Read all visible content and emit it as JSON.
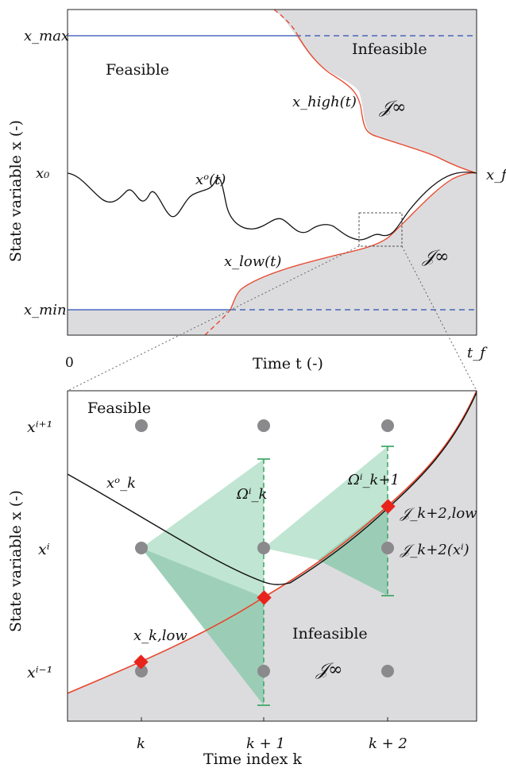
{
  "top_panel": {
    "region_feasible": "Feasible",
    "region_infeasible": "Infeasible",
    "cost_infinity_upper": "𝒥∞",
    "cost_infinity_lower": "𝒥∞",
    "curve_high": "x_high(t)",
    "curve_low": "x_low(t)",
    "curve_optimal": "xᵒ(t)",
    "x_axis_label": "Time t (-)",
    "y_axis_label": "State variable x (-)",
    "y_tick_max": "x_max",
    "y_tick_x0": "x₀",
    "y_tick_min": "x_min",
    "x_tick_start": "0",
    "x_tick_end": "t_f",
    "final_state_label": "x_f"
  },
  "bottom_panel": {
    "region_feasible": "Feasible",
    "region_infeasible": "Infeasible",
    "cost_infinity": "𝒥∞",
    "curve_optimal": "xᵒ_k",
    "omega_k": "Ωⁱ_k",
    "omega_k1": "Ωⁱ_k+1",
    "x_k_low": "x_k,low",
    "j_k2_low": "𝒥_k+2,low",
    "j_k2_xi": "𝒥_k+2(xⁱ)",
    "x_axis_label": "Time index k",
    "y_axis_label": "State variable x (-)",
    "y_ticks": [
      "xⁱ⁺¹",
      "xⁱ",
      "xⁱ⁻¹"
    ],
    "x_ticks": [
      "k",
      "k + 1",
      "k + 2"
    ]
  },
  "colors": {
    "infeasible_fill": "#dcdcde",
    "bound_line": "#2b4fb3",
    "low_high_curve": "#e8452a",
    "optimal_curve": "#111111",
    "grid_point": "#8a8a8c",
    "reachable_set": "#b9e2cd",
    "reachable_set_dark": "#93cbb1",
    "reachable_bar": "#2fa05a",
    "marker": "#e8231c"
  }
}
